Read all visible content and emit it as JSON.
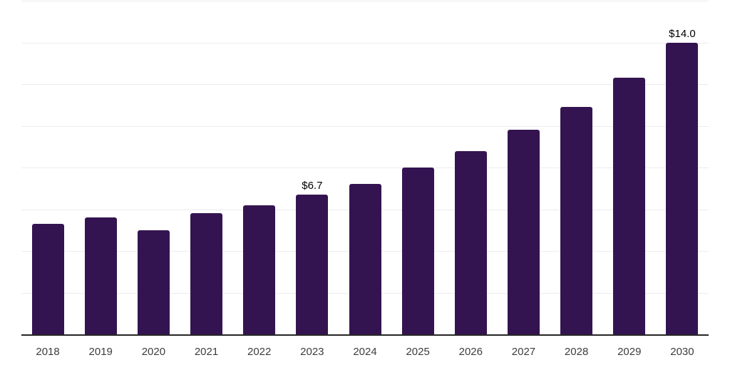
{
  "chart_data": {
    "type": "bar",
    "title": "",
    "xlabel": "",
    "ylabel": "",
    "categories": [
      "2018",
      "2019",
      "2020",
      "2021",
      "2022",
      "2023",
      "2024",
      "2025",
      "2026",
      "2027",
      "2028",
      "2029",
      "2030"
    ],
    "values": [
      5.3,
      5.6,
      5.0,
      5.8,
      6.2,
      6.7,
      7.2,
      8.0,
      8.8,
      9.8,
      10.9,
      12.3,
      14.0
    ],
    "point_labels": [
      "",
      "",
      "",
      "",
      "",
      "$6.7",
      "",
      "",
      "",
      "",
      "",
      "",
      "$14.0"
    ],
    "ylim": [
      0,
      16
    ],
    "gridline_step": 2,
    "grid": "horizontal",
    "legend": "none",
    "y_tick_labels_visible": false,
    "colors": {
      "bar": "#341450",
      "axis_line": "#262626",
      "gridline": "#ececec",
      "tick_label": "#3c3c3c",
      "data_label": "#000000"
    }
  }
}
